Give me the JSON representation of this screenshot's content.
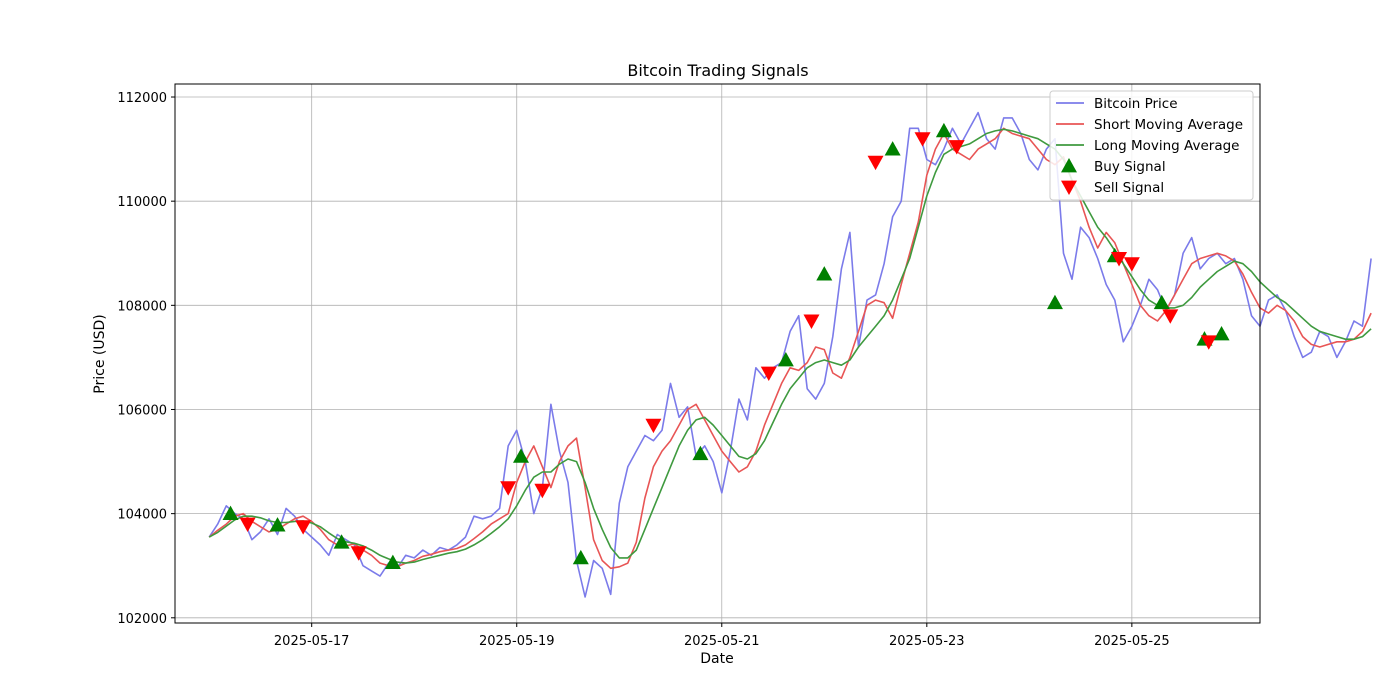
{
  "chart_data": {
    "type": "line",
    "title": "Bitcoin Trading Signals",
    "xlabel": "Date",
    "ylabel": "Price (USD)",
    "grid": true,
    "legend_position": "top-right",
    "x_start": "2025-05-16T00:00",
    "x_step_hours": 2,
    "xlim": [
      "2025-05-15T16:00",
      "2025-05-26T06:00"
    ],
    "ylim": [
      101900,
      112250
    ],
    "x_ticks": [
      "2025-05-17",
      "2025-05-19",
      "2025-05-21",
      "2025-05-23",
      "2025-05-25"
    ],
    "y_ticks": [
      102000,
      104000,
      106000,
      108000,
      110000,
      112000
    ],
    "colors": {
      "price": "#7b7bea",
      "short_ma": "#e85555",
      "long_ma": "#3f9a3f",
      "buy": "#008000",
      "sell": "#ff0000"
    },
    "series": [
      {
        "name": "Bitcoin Price",
        "values": [
          103550,
          103800,
          104150,
          104000,
          103900,
          103500,
          103650,
          103900,
          103600,
          104100,
          103950,
          103700,
          103550,
          103400,
          103200,
          103600,
          103500,
          103400,
          103000,
          102900,
          102800,
          103050,
          102950,
          103200,
          103150,
          103300,
          103200,
          103350,
          103300,
          103400,
          103550,
          103950,
          103900,
          103950,
          104100,
          105300,
          105600,
          105000,
          104000,
          104500,
          106100,
          105200,
          104600,
          103100,
          102400,
          103100,
          102950,
          102450,
          104200,
          104900,
          105200,
          105500,
          105400,
          105600,
          106500,
          105850,
          106050,
          105100,
          105300,
          105000,
          104400,
          105200,
          106200,
          105800,
          106800,
          106600,
          106800,
          106900,
          107500,
          107800,
          106400,
          106200,
          106500,
          107400,
          108700,
          109400,
          107200,
          108100,
          108200,
          108800,
          109700,
          110000,
          111400,
          111400,
          110800,
          110700,
          111000,
          111400,
          111100,
          111400,
          111700,
          111200,
          111000,
          111600,
          111600,
          111300,
          110800,
          110600,
          111000,
          111200,
          109000,
          108500,
          109500,
          109300,
          108900,
          108400,
          108100,
          107300,
          107600,
          108000,
          108500,
          108300,
          107900,
          108200,
          109000,
          109300,
          108700,
          108900,
          109000,
          108800,
          108900,
          108500,
          107800,
          107600,
          108100,
          108200,
          107900,
          107400,
          107000,
          107100,
          107500,
          107400,
          107000,
          107300,
          107700,
          107600,
          108900
        ]
      },
      {
        "name": "Short Moving Average",
        "values": [
          103550,
          103680,
          103800,
          103950,
          104000,
          103850,
          103750,
          103650,
          103700,
          103800,
          103900,
          103950,
          103850,
          103700,
          103500,
          103400,
          103380,
          103420,
          103300,
          103200,
          103050,
          103000,
          102980,
          103050,
          103100,
          103180,
          103220,
          103270,
          103300,
          103330,
          103400,
          103520,
          103650,
          103800,
          103900,
          104000,
          104600,
          105000,
          105300,
          104900,
          104500,
          105000,
          105300,
          105450,
          104500,
          103500,
          103100,
          102950,
          102980,
          103050,
          103450,
          104300,
          104900,
          105200,
          105400,
          105700,
          106000,
          106100,
          105800,
          105500,
          105200,
          105000,
          104800,
          104900,
          105200,
          105700,
          106100,
          106500,
          106800,
          106750,
          106900,
          107200,
          107150,
          106700,
          106600,
          107000,
          107500,
          108000,
          108100,
          108050,
          107750,
          108400,
          109000,
          109600,
          110500,
          111000,
          111300,
          111000,
          110900,
          110800,
          111000,
          111100,
          111200,
          111400,
          111300,
          111250,
          111200,
          111000,
          110800,
          110700,
          110850,
          110400,
          110000,
          109500,
          109100,
          109400,
          109200,
          108800,
          108400,
          108000,
          107800,
          107700,
          107900,
          108200,
          108500,
          108800,
          108900,
          108950,
          109000,
          108950,
          108850,
          108600,
          108250,
          107950,
          107850,
          108000,
          107900,
          107700,
          107400,
          107250,
          107200,
          107250,
          107300,
          107300,
          107350,
          107500,
          107850
        ]
      },
      {
        "name": "Long Moving Average",
        "values": [
          103550,
          103640,
          103760,
          103880,
          103950,
          103950,
          103920,
          103860,
          103830,
          103830,
          103850,
          103860,
          103820,
          103750,
          103630,
          103520,
          103460,
          103430,
          103380,
          103300,
          103200,
          103130,
          103070,
          103050,
          103070,
          103120,
          103160,
          103200,
          103240,
          103270,
          103320,
          103400,
          103500,
          103620,
          103750,
          103900,
          104150,
          104450,
          104700,
          104800,
          104800,
          104950,
          105050,
          105000,
          104600,
          104100,
          103700,
          103350,
          103150,
          103150,
          103300,
          103700,
          104100,
          104500,
          104900,
          105300,
          105600,
          105800,
          105850,
          105700,
          105500,
          105300,
          105100,
          105050,
          105150,
          105400,
          105750,
          106100,
          106400,
          106600,
          106800,
          106900,
          106950,
          106900,
          106850,
          106950,
          107200,
          107400,
          107600,
          107800,
          108100,
          108500,
          108900,
          109500,
          110100,
          110550,
          110900,
          111000,
          111050,
          111100,
          111200,
          111300,
          111350,
          111380,
          111350,
          111300,
          111250,
          111200,
          111100,
          111000,
          110800,
          110400,
          110100,
          109800,
          109500,
          109300,
          109050,
          108800,
          108550,
          108300,
          108100,
          108000,
          107950,
          107950,
          108000,
          108150,
          108350,
          108500,
          108650,
          108750,
          108850,
          108800,
          108650,
          108450,
          108300,
          108150,
          108050,
          107900,
          107750,
          107600,
          107500,
          107450,
          107400,
          107350,
          107350,
          107400,
          107550
        ]
      },
      {
        "name": "Buy Signal",
        "points": [
          {
            "x": "2025-05-16T05:00",
            "y": 104000
          },
          {
            "x": "2025-05-16T16:00",
            "y": 103780
          },
          {
            "x": "2025-05-17T07:00",
            "y": 103450
          },
          {
            "x": "2025-05-17T19:00",
            "y": 103060
          },
          {
            "x": "2025-05-19T01:00",
            "y": 105100
          },
          {
            "x": "2025-05-19T15:00",
            "y": 103150
          },
          {
            "x": "2025-05-20T19:00",
            "y": 105150
          },
          {
            "x": "2025-05-21T15:00",
            "y": 106950
          },
          {
            "x": "2025-05-22T00:00",
            "y": 108600
          },
          {
            "x": "2025-05-22T16:00",
            "y": 111000
          },
          {
            "x": "2025-05-23T04:00",
            "y": 111350
          },
          {
            "x": "2025-05-24T06:00",
            "y": 108050
          },
          {
            "x": "2025-05-24T20:00",
            "y": 108950
          },
          {
            "x": "2025-05-25T07:00",
            "y": 108050
          },
          {
            "x": "2025-05-25T17:00",
            "y": 107350
          },
          {
            "x": "2025-05-25T21:00",
            "y": 107450
          }
        ]
      },
      {
        "name": "Sell Signal",
        "points": [
          {
            "x": "2025-05-16T09:00",
            "y": 103800
          },
          {
            "x": "2025-05-16T22:00",
            "y": 103750
          },
          {
            "x": "2025-05-17T11:00",
            "y": 103250
          },
          {
            "x": "2025-05-18T22:00",
            "y": 104500
          },
          {
            "x": "2025-05-19T06:00",
            "y": 104450
          },
          {
            "x": "2025-05-20T08:00",
            "y": 105700
          },
          {
            "x": "2025-05-21T11:00",
            "y": 106700
          },
          {
            "x": "2025-05-21T21:00",
            "y": 107700
          },
          {
            "x": "2025-05-22T12:00",
            "y": 110750
          },
          {
            "x": "2025-05-22T23:00",
            "y": 111200
          },
          {
            "x": "2025-05-23T07:00",
            "y": 111050
          },
          {
            "x": "2025-05-24T21:00",
            "y": 108900
          },
          {
            "x": "2025-05-25T00:00",
            "y": 108800
          },
          {
            "x": "2025-05-25T09:00",
            "y": 107800
          },
          {
            "x": "2025-05-25T18:00",
            "y": 107300
          }
        ]
      }
    ]
  }
}
